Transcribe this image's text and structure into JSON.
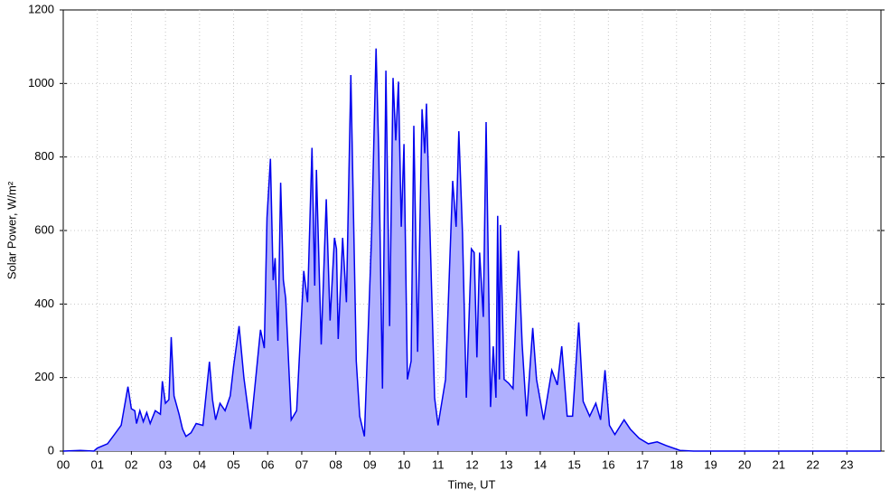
{
  "chart_data": {
    "type": "area",
    "x_label": "Time, UT",
    "y_label": "Solar Power, W/m²",
    "xlim": [
      0,
      24
    ],
    "ylim": [
      0,
      1200
    ],
    "xticks": [
      {
        "value": 0,
        "label": "00"
      },
      {
        "value": 1,
        "label": "01"
      },
      {
        "value": 2,
        "label": "02"
      },
      {
        "value": 3,
        "label": "03"
      },
      {
        "value": 4,
        "label": "04"
      },
      {
        "value": 5,
        "label": "05"
      },
      {
        "value": 6,
        "label": "06"
      },
      {
        "value": 7,
        "label": "07"
      },
      {
        "value": 8,
        "label": "08"
      },
      {
        "value": 9,
        "label": "09"
      },
      {
        "value": 10,
        "label": "10"
      },
      {
        "value": 11,
        "label": "11"
      },
      {
        "value": 12,
        "label": "12"
      },
      {
        "value": 13,
        "label": "13"
      },
      {
        "value": 14,
        "label": "14"
      },
      {
        "value": 15,
        "label": "15"
      },
      {
        "value": 16,
        "label": "16"
      },
      {
        "value": 17,
        "label": "17"
      },
      {
        "value": 18,
        "label": "18"
      },
      {
        "value": 19,
        "label": "19"
      },
      {
        "value": 20,
        "label": "20"
      },
      {
        "value": 21,
        "label": "21"
      },
      {
        "value": 22,
        "label": "22"
      },
      {
        "value": 23,
        "label": "23"
      }
    ],
    "yticks": [
      0,
      200,
      400,
      600,
      800,
      1000,
      1200
    ],
    "grid": true,
    "color": "#0000ee",
    "fill_color": "#b0b0ff",
    "x": [
      0,
      0.5,
      0.9,
      1.0,
      1.3,
      1.5,
      1.7,
      1.9,
      2.0,
      2.1,
      2.15,
      2.25,
      2.35,
      2.45,
      2.55,
      2.7,
      2.85,
      2.91,
      3.0,
      3.1,
      3.17,
      3.25,
      3.4,
      3.5,
      3.6,
      3.75,
      3.9,
      4.1,
      4.29,
      4.38,
      4.47,
      4.6,
      4.75,
      4.9,
      5.0,
      5.16,
      5.3,
      5.5,
      5.65,
      5.79,
      5.9,
      5.98,
      6.08,
      6.16,
      6.22,
      6.3,
      6.38,
      6.46,
      6.53,
      6.69,
      6.85,
      7.06,
      7.17,
      7.3,
      7.38,
      7.43,
      7.57,
      7.72,
      7.83,
      7.96,
      8.02,
      8.07,
      8.2,
      8.31,
      8.44,
      8.6,
      8.7,
      8.84,
      9.05,
      9.18,
      9.26,
      9.37,
      9.47,
      9.58,
      9.68,
      9.76,
      9.84,
      9.92,
      10.0,
      10.1,
      10.21,
      10.29,
      10.4,
      10.53,
      10.61,
      10.66,
      10.74,
      10.9,
      11.0,
      11.22,
      11.43,
      11.53,
      11.61,
      11.72,
      11.83,
      11.98,
      12.06,
      12.14,
      12.22,
      12.33,
      12.41,
      12.54,
      12.62,
      12.7,
      12.75,
      12.8,
      12.83,
      12.94,
      13.07,
      13.2,
      13.36,
      13.47,
      13.6,
      13.78,
      13.89,
      14.1,
      14.34,
      14.5,
      14.63,
      14.79,
      14.95,
      15.13,
      15.26,
      15.45,
      15.63,
      15.77,
      15.9,
      16.03,
      16.19,
      16.46,
      16.64,
      16.9,
      17.17,
      17.43,
      17.7,
      18.1,
      18.5,
      24
    ],
    "values": [
      0,
      2,
      0,
      8,
      20,
      45,
      70,
      175,
      115,
      110,
      75,
      110,
      80,
      105,
      75,
      110,
      100,
      190,
      130,
      140,
      310,
      150,
      100,
      60,
      40,
      50,
      75,
      70,
      243,
      140,
      85,
      130,
      110,
      150,
      230,
      340,
      200,
      60,
      200,
      330,
      280,
      635,
      795,
      465,
      525,
      300,
      730,
      465,
      415,
      85,
      110,
      490,
      405,
      825,
      450,
      765,
      290,
      685,
      355,
      580,
      550,
      305,
      580,
      405,
      1023,
      245,
      95,
      40,
      590,
      1095,
      810,
      170,
      1035,
      340,
      1015,
      845,
      1005,
      610,
      835,
      195,
      245,
      885,
      270,
      930,
      810,
      945,
      675,
      145,
      70,
      195,
      735,
      610,
      870,
      590,
      145,
      550,
      540,
      255,
      540,
      365,
      895,
      120,
      285,
      145,
      640,
      195,
      615,
      195,
      185,
      170,
      545,
      290,
      95,
      335,
      195,
      85,
      220,
      180,
      285,
      95,
      95,
      350,
      135,
      95,
      130,
      85,
      220,
      70,
      45,
      85,
      60,
      35,
      20,
      25,
      15,
      2,
      0,
      0
    ]
  }
}
